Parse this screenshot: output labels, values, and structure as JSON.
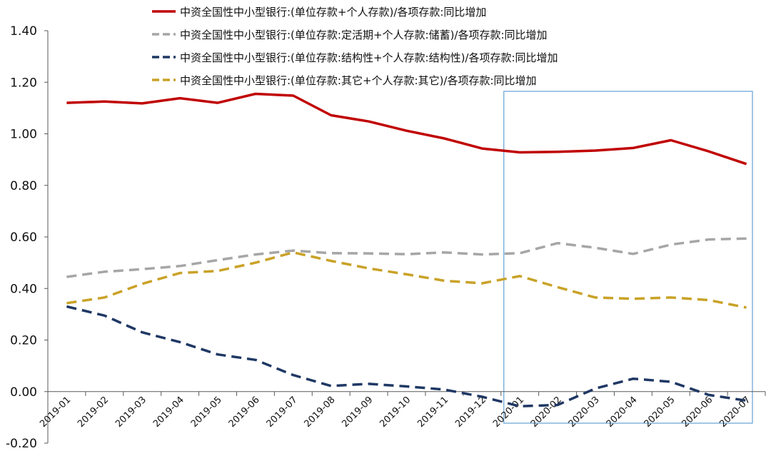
{
  "chart_data": {
    "type": "line",
    "categories": [
      "2019-01",
      "2019-02",
      "2019-03",
      "2019-04",
      "2019-05",
      "2019-06",
      "2019-07",
      "2019-08",
      "2019-09",
      "2019-10",
      "2019-11",
      "2019-12",
      "2020-01",
      "2020-02",
      "2020-03",
      "2020-04",
      "2020-05",
      "2020-06",
      "2020-07"
    ],
    "ylim": [
      -0.2,
      1.4
    ],
    "yticks": [
      "1.40",
      "1.20",
      "1.00",
      "0.80",
      "0.60",
      "0.40",
      "0.20",
      "0.00",
      "-0.20"
    ],
    "legend_position": "top",
    "grid": false,
    "highlight": {
      "from": "2020-01",
      "to": "2020-07",
      "color": "#6FA8D8"
    },
    "series": [
      {
        "name": "中资全国性中小型银行:(单位存款+个人存款)/各项存款:同比增加",
        "color": "#C00000",
        "style": "solid",
        "values": [
          1.12,
          1.125,
          1.118,
          1.138,
          1.12,
          1.155,
          1.148,
          1.072,
          1.048,
          1.012,
          0.982,
          0.943,
          0.928,
          0.93,
          0.935,
          0.945,
          0.975,
          0.932,
          0.883
        ]
      },
      {
        "name": "中资全国性中小型银行:(单位存款:定活期+个人存款:储蓄)/各项存款:同比增加",
        "color": "#A6A6A6",
        "style": "dashed",
        "values": [
          0.445,
          0.465,
          0.475,
          0.487,
          0.51,
          0.532,
          0.547,
          0.537,
          0.536,
          0.533,
          0.54,
          0.532,
          0.537,
          0.576,
          0.558,
          0.534,
          0.57,
          0.59,
          0.594
        ]
      },
      {
        "name": "中资全国性中小型银行:(单位存款:结构性+个人存款:结构性)/各项存款:同比增加",
        "color": "#1F3864",
        "style": "dashed",
        "values": [
          0.33,
          0.295,
          0.23,
          0.192,
          0.144,
          0.123,
          0.064,
          0.022,
          0.03,
          0.02,
          0.008,
          -0.02,
          -0.057,
          -0.052,
          0.012,
          0.05,
          0.038,
          -0.013,
          -0.035
        ]
      },
      {
        "name": "中资全国性中小型银行:(单位存款:其它+个人存款:其它)/各项存款:同比增加",
        "color": "#C9A227",
        "style": "dashed",
        "values": [
          0.343,
          0.365,
          0.418,
          0.46,
          0.468,
          0.5,
          0.54,
          0.507,
          0.478,
          0.455,
          0.43,
          0.42,
          0.448,
          0.405,
          0.365,
          0.36,
          0.365,
          0.355,
          0.326
        ]
      }
    ]
  }
}
